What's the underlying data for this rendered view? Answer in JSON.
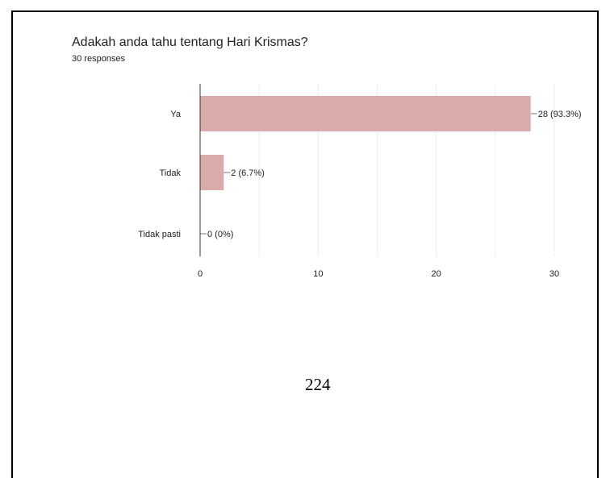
{
  "question": {
    "title": "Adakah anda tahu tentang Hari Krismas?",
    "responses": "30 responses"
  },
  "chart_data": {
    "type": "bar",
    "orientation": "horizontal",
    "categories": [
      "Ya",
      "Tidak",
      "Tidak pasti"
    ],
    "values": [
      28,
      2,
      0
    ],
    "data_labels": [
      "28 (93.3%)",
      "2 (6.7%)",
      "0 (0%)"
    ],
    "xlim": [
      0,
      30
    ],
    "xticks": [
      0,
      10,
      20,
      30
    ],
    "bar_color": "#d9abab",
    "grid": true
  },
  "page_number": "224"
}
